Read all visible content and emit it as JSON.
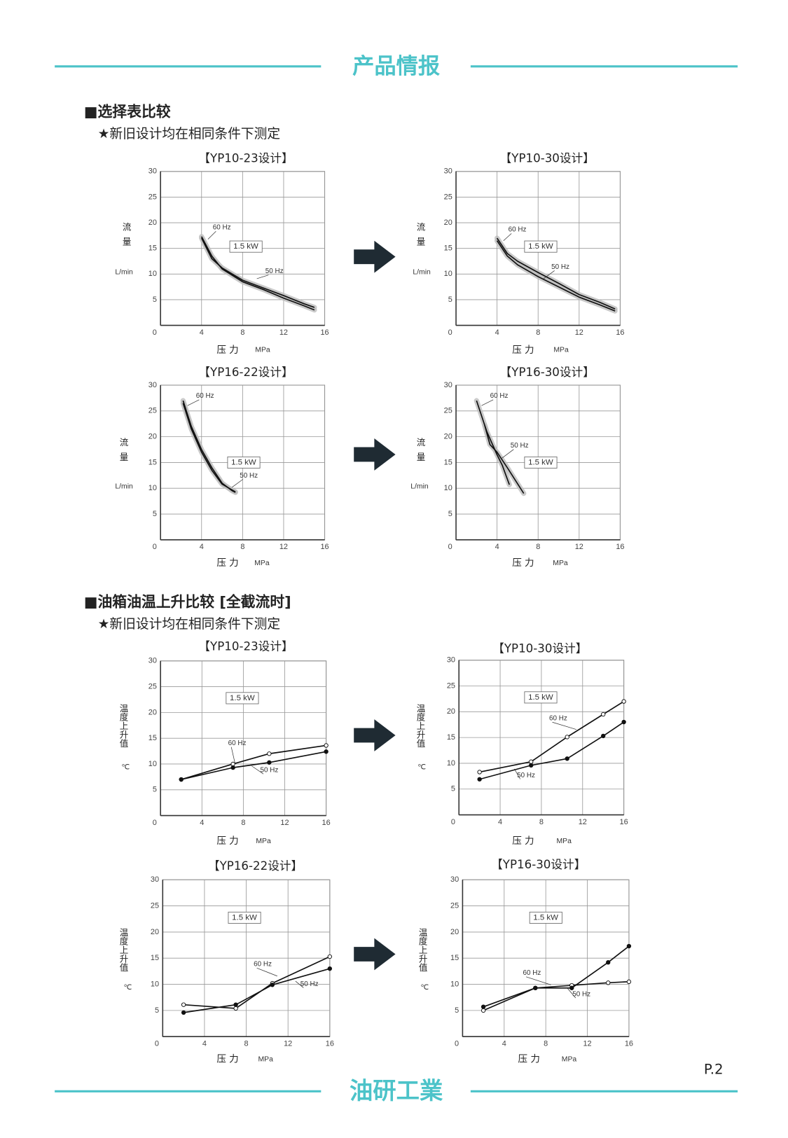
{
  "header": {
    "title": "产品情报"
  },
  "sections": [
    {
      "heading": "■选择表比较",
      "note": "★新旧设计均在相同条件下测定"
    },
    {
      "heading": "■油箱油温上升比较 [全截流时]",
      "note": "★新旧设计均在相同条件下测定"
    }
  ],
  "chart_data": [
    {
      "type": "line",
      "title": "【YP10-23设计】",
      "x_label": "压 力",
      "x_unit": "MPa",
      "y_label": "流量",
      "y_unit": "L/min",
      "annotation": "1.5 kW",
      "xlim": [
        0,
        16
      ],
      "ylim": [
        0,
        30
      ],
      "xticks": [
        0,
        4,
        8,
        12,
        16
      ],
      "yticks": [
        5,
        10,
        15,
        20,
        25,
        30
      ],
      "grid": true,
      "band_color": "#bdbdbd",
      "series": [
        {
          "name": "60 Hz",
          "color": "#111111",
          "x": [
            4,
            5,
            6,
            8,
            10,
            12,
            14,
            15
          ],
          "values": [
            17.3,
            13.5,
            11,
            8.5,
            7,
            5.3,
            3.8,
            3
          ]
        },
        {
          "name": "50 Hz",
          "color": "#111111",
          "x": [
            4,
            5,
            6,
            8,
            10,
            12,
            14,
            15
          ],
          "values": [
            17,
            13,
            11.2,
            8.8,
            7.3,
            5.8,
            4.2,
            3.5
          ]
        }
      ]
    },
    {
      "type": "line",
      "title": "【YP10-30设计】",
      "x_label": "压 力",
      "x_unit": "MPa",
      "y_label": "流量",
      "y_unit": "L/min",
      "annotation": "1.5 kW",
      "xlim": [
        0,
        16
      ],
      "ylim": [
        0,
        30
      ],
      "xticks": [
        0,
        4,
        8,
        12,
        16
      ],
      "yticks": [
        5,
        10,
        15,
        20,
        25,
        30
      ],
      "grid": true,
      "band_color": "#bdbdbd",
      "series": [
        {
          "name": "60 Hz",
          "color": "#111111",
          "x": [
            4,
            5,
            6,
            8,
            10,
            12,
            14,
            15.5
          ],
          "values": [
            17,
            14,
            12.5,
            10.3,
            8.2,
            6,
            4.5,
            3.2
          ]
        },
        {
          "name": "50 Hz",
          "color": "#111111",
          "x": [
            4,
            5,
            6,
            8,
            10,
            12,
            14,
            15.5
          ],
          "values": [
            16.5,
            13.5,
            11.8,
            9.5,
            7.5,
            5.5,
            4,
            2.8
          ]
        }
      ]
    },
    {
      "type": "line",
      "title": "【YP16-22设计】",
      "x_label": "压 力",
      "x_unit": "MPa",
      "y_label": "流量",
      "y_unit": "L/min",
      "annotation": "1.5 kW",
      "xlim": [
        0,
        16
      ],
      "ylim": [
        0,
        30
      ],
      "xticks": [
        0,
        4,
        8,
        12,
        16
      ],
      "yticks": [
        5,
        10,
        15,
        20,
        25,
        30
      ],
      "grid": true,
      "band_color": "#bdbdbd",
      "series": [
        {
          "name": "60 Hz",
          "color": "#111111",
          "x": [
            2.2,
            3,
            4,
            5,
            6,
            7,
            7.3
          ],
          "values": [
            27,
            22,
            17.5,
            14,
            11,
            9.5,
            9.2
          ]
        },
        {
          "name": "50 Hz",
          "color": "#111111",
          "x": [
            2.2,
            3,
            4,
            5,
            6,
            7.3
          ],
          "values": [
            26.5,
            21.5,
            17,
            13.5,
            10.8,
            9.3
          ]
        }
      ]
    },
    {
      "type": "line",
      "title": "【YP16-30设计】",
      "x_label": "压 力",
      "x_unit": "MPa",
      "y_label": "流量",
      "y_unit": "L/min",
      "annotation": "1.5 kW",
      "xlim": [
        0,
        16
      ],
      "ylim": [
        0,
        30
      ],
      "xticks": [
        0,
        4,
        8,
        12,
        16
      ],
      "yticks": [
        5,
        10,
        15,
        20,
        25,
        30
      ],
      "grid": true,
      "band_color": "#bdbdbd",
      "series": [
        {
          "name": "60 Hz",
          "color": "#111111",
          "x": [
            2,
            3,
            4,
            4.5,
            5.2
          ],
          "values": [
            27,
            21,
            16.5,
            14.5,
            10.7
          ]
        },
        {
          "name": "50 Hz",
          "color": "#111111",
          "x": [
            2.8,
            3.3,
            4,
            5,
            6.6
          ],
          "values": [
            22.2,
            18.5,
            17,
            14,
            9
          ]
        }
      ]
    },
    {
      "type": "line",
      "title": "【YP10-23设计】",
      "x_label": "压 力",
      "x_unit": "MPa",
      "y_label": "温度上升值",
      "y_unit": "℃",
      "annotation": "1.5 kW",
      "xlim": [
        0,
        16
      ],
      "ylim": [
        0,
        30
      ],
      "xticks": [
        0,
        4,
        8,
        12,
        16
      ],
      "yticks": [
        5,
        10,
        15,
        20,
        25,
        30
      ],
      "grid": true,
      "series": [
        {
          "name": "60 Hz",
          "color": "#111111",
          "marker": "open",
          "x": [
            2,
            7,
            10.5,
            16
          ],
          "values": [
            7,
            10,
            12,
            13.6
          ]
        },
        {
          "name": "50 Hz",
          "color": "#111111",
          "marker": "filled",
          "x": [
            2,
            7,
            10.5,
            16
          ],
          "values": [
            7,
            9.3,
            10.3,
            12.4
          ]
        }
      ]
    },
    {
      "type": "line",
      "title": "【YP10-30设计】",
      "x_label": "压 力",
      "x_unit": "MPa",
      "y_label": "温度上升值",
      "y_unit": "℃",
      "annotation": "1.5 kW",
      "xlim": [
        0,
        16
      ],
      "ylim": [
        0,
        30
      ],
      "xticks": [
        0,
        4,
        8,
        12,
        16
      ],
      "yticks": [
        5,
        10,
        15,
        20,
        25,
        30
      ],
      "grid": true,
      "series": [
        {
          "name": "60 Hz",
          "color": "#111111",
          "marker": "open",
          "x": [
            2,
            7,
            10.5,
            14,
            16
          ],
          "values": [
            8.3,
            10.3,
            15.1,
            19.5,
            22
          ]
        },
        {
          "name": "50 Hz",
          "color": "#111111",
          "marker": "filled",
          "x": [
            2,
            7,
            10.5,
            14,
            16
          ],
          "values": [
            6.9,
            9.6,
            10.9,
            15.3,
            18
          ]
        }
      ]
    },
    {
      "type": "line",
      "title": "【YP16-22设计】",
      "x_label": "压 力",
      "x_unit": "MPa",
      "y_label": "温度上升值",
      "y_unit": "℃",
      "annotation": "1.5 kW",
      "xlim": [
        0,
        16
      ],
      "ylim": [
        0,
        30
      ],
      "xticks": [
        0,
        4,
        8,
        12,
        16
      ],
      "yticks": [
        5,
        10,
        15,
        20,
        25,
        30
      ],
      "grid": true,
      "series": [
        {
          "name": "60 Hz",
          "color": "#111111",
          "marker": "open",
          "x": [
            2,
            7,
            10.5,
            16
          ],
          "values": [
            6.1,
            5.4,
            10.2,
            15.3
          ]
        },
        {
          "name": "50 Hz",
          "color": "#111111",
          "marker": "filled",
          "x": [
            2,
            7,
            10.5,
            16
          ],
          "values": [
            4.6,
            6.1,
            9.9,
            13
          ]
        }
      ]
    },
    {
      "type": "line",
      "title": "【YP16-30设计】",
      "x_label": "压 力",
      "x_unit": "MPa",
      "y_label": "温度上升值",
      "y_unit": "℃",
      "annotation": "1.5 kW",
      "xlim": [
        0,
        16
      ],
      "ylim": [
        0,
        30
      ],
      "xticks": [
        0,
        4,
        8,
        12,
        16
      ],
      "yticks": [
        5,
        10,
        15,
        20,
        25,
        30
      ],
      "grid": true,
      "series": [
        {
          "name": "60 Hz",
          "color": "#111111",
          "marker": "open",
          "x": [
            2,
            7,
            10.5,
            14,
            16
          ],
          "values": [
            5,
            9.3,
            9.8,
            10.3,
            10.5
          ]
        },
        {
          "name": "50 Hz",
          "color": "#111111",
          "marker": "filled",
          "x": [
            2,
            7,
            10.5,
            14,
            16
          ],
          "values": [
            5.7,
            9.3,
            9.3,
            14.2,
            17.3
          ]
        }
      ]
    }
  ],
  "page_number": "P.2",
  "footer": {
    "brand": "油研工業"
  }
}
